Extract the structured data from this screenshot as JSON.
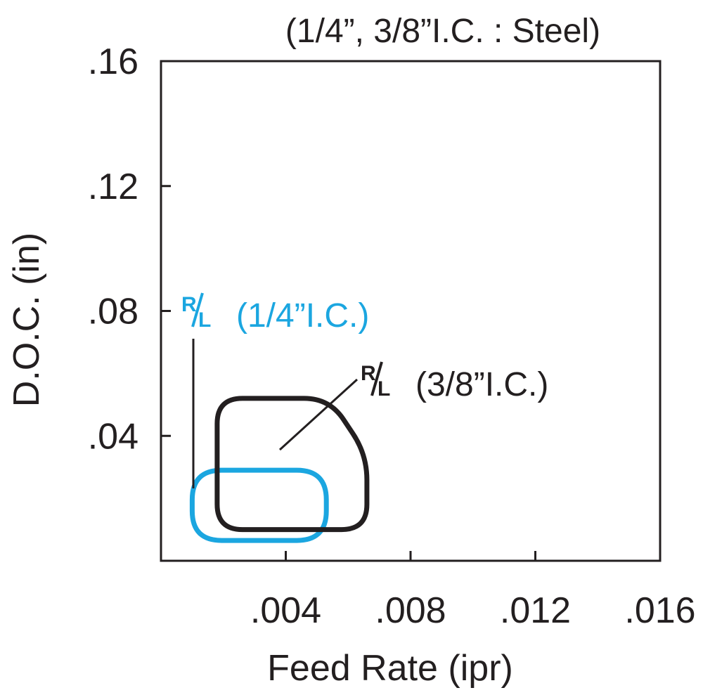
{
  "chart_data": {
    "type": "area",
    "title": "(1/4”, 3/8”I.C. : Steel)",
    "xlabel": "Feed Rate (ipr)",
    "ylabel": "D.O.C. (in)",
    "xlim": [
      0,
      0.016
    ],
    "ylim": [
      0,
      0.16
    ],
    "x_ticks": [
      0.004,
      0.008,
      0.012,
      0.016
    ],
    "x_tick_labels": [
      ".004",
      ".008",
      ".012",
      ".016"
    ],
    "y_ticks": [
      0.04,
      0.08,
      0.12,
      0.16
    ],
    "y_tick_labels": [
      ".04",
      ".08",
      ".12",
      ".16"
    ],
    "grid": false,
    "series": [
      {
        "name": "R/L (1/4”I.C.)",
        "label_main": "R",
        "label_sub": "L",
        "label_text": "(1/4”I.C.)",
        "color": "#1ba6e0",
        "region": [
          [
            0.001,
            0.0065
          ],
          [
            0.0053,
            0.0065
          ],
          [
            0.0053,
            0.029
          ],
          [
            0.001,
            0.029
          ]
        ]
      },
      {
        "name": "R/L (3/8”I.C.)",
        "label_main": "R",
        "label_sub": "L",
        "label_text": "(3/8”I.C.)",
        "color": "#231f20",
        "region": [
          [
            0.0018,
            0.01
          ],
          [
            0.0066,
            0.01
          ],
          [
            0.0066,
            0.034
          ],
          [
            0.0054,
            0.052
          ],
          [
            0.0018,
            0.052
          ]
        ]
      }
    ]
  }
}
